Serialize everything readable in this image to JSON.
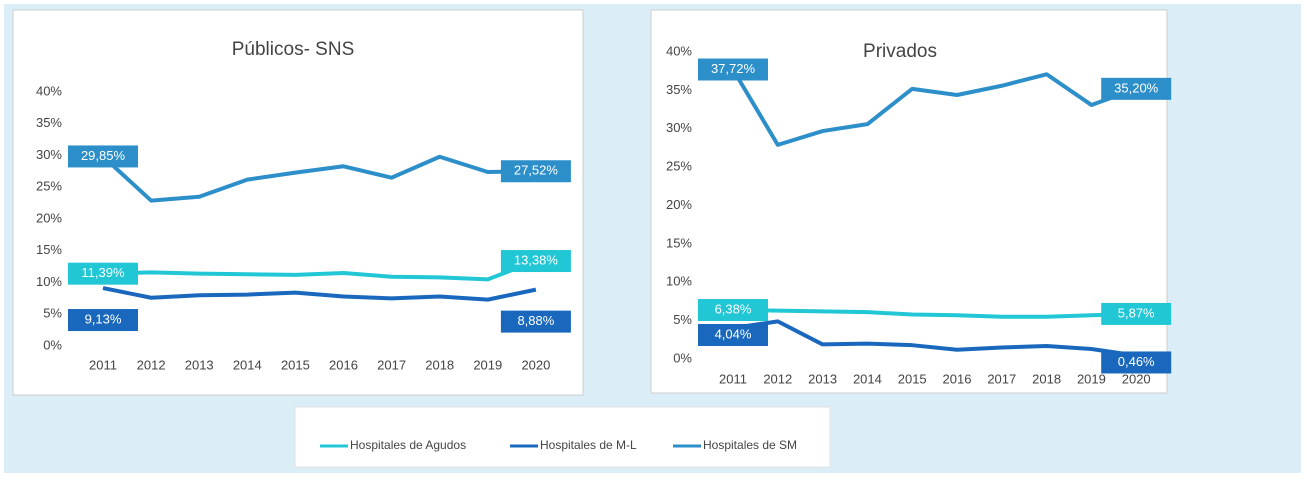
{
  "chart_data": [
    {
      "type": "line",
      "title": "Públicos- SNS",
      "categories": [
        "2011",
        "2012",
        "2013",
        "2014",
        "2015",
        "2016",
        "2017",
        "2018",
        "2019",
        "2020"
      ],
      "ylim": [
        0,
        40
      ],
      "yticks": [
        {
          "value": 0,
          "label": "0%"
        },
        {
          "value": 5,
          "label": "5%"
        },
        {
          "value": 10,
          "label": "10%"
        },
        {
          "value": 15,
          "label": "15%"
        },
        {
          "value": 20,
          "label": "20%"
        },
        {
          "value": 25,
          "label": "25%"
        },
        {
          "value": 30,
          "label": "30%"
        },
        {
          "value": 35,
          "label": "35%"
        },
        {
          "value": 40,
          "label": "40%"
        }
      ],
      "series": [
        {
          "name": "Hospitales de Agudos",
          "color": "#22c7d6",
          "values": [
            11.39,
            11.6,
            11.4,
            11.3,
            11.2,
            11.5,
            10.9,
            10.8,
            10.5,
            13.38
          ],
          "value_labels": [
            "11,39%",
            null,
            null,
            null,
            null,
            null,
            null,
            null,
            null,
            "13,38%"
          ]
        },
        {
          "name": "Hospitales de M-L",
          "color": "#1a68bd",
          "values": [
            9.13,
            7.6,
            8.0,
            8.1,
            8.4,
            7.8,
            7.5,
            7.8,
            7.3,
            8.88
          ],
          "value_labels": [
            "9,13%",
            null,
            null,
            null,
            null,
            null,
            null,
            null,
            null,
            "8,88%"
          ]
        },
        {
          "name": "Hospitales de SM",
          "color": "#2d8fc9",
          "values": [
            29.85,
            22.9,
            23.5,
            26.2,
            27.3,
            28.3,
            26.5,
            29.8,
            27.4,
            27.52
          ],
          "value_labels": [
            "29,85%",
            null,
            null,
            null,
            null,
            null,
            null,
            null,
            null,
            "27,52%"
          ]
        }
      ]
    },
    {
      "type": "line",
      "title": "Privados",
      "categories": [
        "2011",
        "2012",
        "2013",
        "2014",
        "2015",
        "2016",
        "2017",
        "2018",
        "2019",
        "2020"
      ],
      "ylim": [
        0,
        40
      ],
      "yticks": [
        {
          "value": 0,
          "label": "0%"
        },
        {
          "value": 5,
          "label": "5%"
        },
        {
          "value": 10,
          "label": "10%"
        },
        {
          "value": 15,
          "label": "15%"
        },
        {
          "value": 20,
          "label": "20%"
        },
        {
          "value": 25,
          "label": "25%"
        },
        {
          "value": 30,
          "label": "30%"
        },
        {
          "value": 35,
          "label": "35%"
        },
        {
          "value": 40,
          "label": "40%"
        }
      ],
      "series": [
        {
          "color": "#22c7d6",
          "values": [
            6.38,
            6.3,
            6.2,
            6.1,
            5.8,
            5.7,
            5.5,
            5.5,
            5.7,
            5.87
          ],
          "value_labels": [
            "6,38%",
            null,
            null,
            null,
            null,
            null,
            null,
            null,
            null,
            "5,87%"
          ]
        },
        {
          "color": "#1a68bd",
          "values": [
            4.04,
            4.9,
            1.9,
            2.0,
            1.8,
            1.2,
            1.5,
            1.7,
            1.3,
            0.46
          ],
          "value_labels": [
            "4,04%",
            null,
            null,
            null,
            null,
            null,
            null,
            null,
            null,
            "0,46%"
          ]
        },
        {
          "color": "#2d8fc9",
          "values": [
            37.72,
            27.9,
            29.7,
            30.6,
            35.2,
            34.4,
            35.6,
            37.1,
            33.1,
            35.2
          ],
          "value_labels": [
            "37,72%",
            null,
            null,
            null,
            null,
            null,
            null,
            null,
            null,
            "35,20%"
          ]
        }
      ]
    }
  ]
}
